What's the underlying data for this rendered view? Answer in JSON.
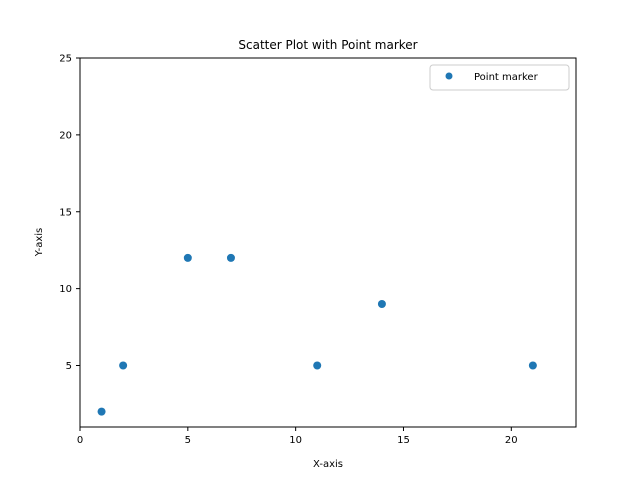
{
  "chart_data": {
    "type": "scatter",
    "title": "Scatter Plot with Point marker",
    "xlabel": "X-axis",
    "ylabel": "Y-axis",
    "xlim": [
      0,
      23
    ],
    "ylim": [
      1,
      25
    ],
    "xticks": [
      0,
      5,
      10,
      15,
      20
    ],
    "yticks": [
      5,
      10,
      15,
      20,
      25
    ],
    "grid": false,
    "legend_position": "top-right",
    "series": [
      {
        "name": "Point marker",
        "color": "#1f77b4",
        "marker": "point",
        "points": [
          {
            "x": 1,
            "y": 2
          },
          {
            "x": 2,
            "y": 5
          },
          {
            "x": 5,
            "y": 12
          },
          {
            "x": 7,
            "y": 12
          },
          {
            "x": 11,
            "y": 5
          },
          {
            "x": 14,
            "y": 9
          },
          {
            "x": 21,
            "y": 5
          }
        ]
      }
    ]
  }
}
